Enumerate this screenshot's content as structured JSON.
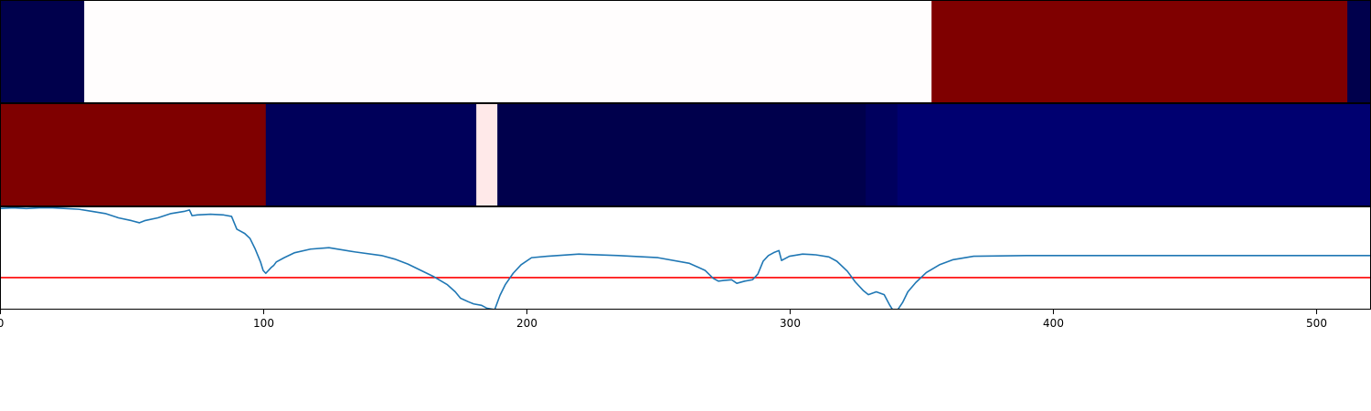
{
  "chart_data": [
    {
      "type": "heatmap",
      "colormap": "seismic",
      "segments": [
        {
          "start": 0,
          "end": 32,
          "color": "#00004c"
        },
        {
          "start": 32,
          "end": 354,
          "color": "#fffdfd"
        },
        {
          "start": 354,
          "end": 512,
          "color": "#7f0000"
        },
        {
          "start": 512,
          "end": 521,
          "color": "#00004c"
        }
      ]
    },
    {
      "type": "heatmap",
      "colormap": "seismic",
      "segments": [
        {
          "start": 0,
          "end": 101,
          "color": "#7f0000"
        },
        {
          "start": 101,
          "end": 181,
          "color": "#00005a"
        },
        {
          "start": 181,
          "end": 189,
          "color": "#ffe9e9"
        },
        {
          "start": 189,
          "end": 329,
          "color": "#00004c"
        },
        {
          "start": 329,
          "end": 341,
          "color": "#00005e"
        },
        {
          "start": 341,
          "end": 521,
          "color": "#000070"
        }
      ]
    },
    {
      "type": "line",
      "xlim": [
        0,
        521
      ],
      "ylim": [
        -0.45,
        1.0
      ],
      "xticks": [
        0,
        100,
        200,
        300,
        400,
        500
      ],
      "series": [
        {
          "color": "#1f77b4",
          "x": [
            0,
            5,
            10,
            15,
            20,
            25,
            30,
            35,
            40,
            45,
            50,
            53,
            55,
            60,
            65,
            70,
            72,
            73,
            75,
            80,
            85,
            88,
            90,
            93,
            95,
            97,
            99,
            100,
            101,
            103,
            104,
            105,
            108,
            112,
            118,
            125,
            135,
            145,
            150,
            155,
            160,
            165,
            170,
            173,
            175,
            178,
            180,
            183,
            185,
            188,
            190,
            192,
            195,
            198,
            202,
            208,
            220,
            235,
            250,
            262,
            268,
            271,
            273,
            275,
            278,
            280,
            283,
            286,
            288,
            290,
            292,
            294,
            296,
            297,
            300,
            305,
            310,
            315,
            318,
            322,
            325,
            328,
            330,
            333,
            336,
            338,
            339,
            340,
            341,
            343,
            345,
            348,
            352,
            357,
            362,
            370,
            390,
            420,
            460,
            500,
            521
          ],
          "y": [
            0.97,
            0.98,
            0.97,
            0.98,
            0.98,
            0.97,
            0.96,
            0.93,
            0.9,
            0.84,
            0.8,
            0.77,
            0.8,
            0.84,
            0.9,
            0.93,
            0.95,
            0.87,
            0.88,
            0.89,
            0.88,
            0.86,
            0.68,
            0.62,
            0.55,
            0.4,
            0.22,
            0.1,
            0.06,
            0.14,
            0.17,
            0.22,
            0.28,
            0.35,
            0.4,
            0.42,
            0.36,
            0.31,
            0.26,
            0.19,
            0.1,
            0.01,
            -0.1,
            -0.2,
            -0.29,
            -0.34,
            -0.37,
            -0.39,
            -0.43,
            -0.45,
            -0.25,
            -0.1,
            0.06,
            0.18,
            0.28,
            0.3,
            0.33,
            0.31,
            0.28,
            0.2,
            0.1,
            -0.01,
            -0.05,
            -0.04,
            -0.03,
            -0.08,
            -0.05,
            -0.03,
            0.05,
            0.23,
            0.31,
            0.35,
            0.38,
            0.24,
            0.3,
            0.33,
            0.32,
            0.29,
            0.23,
            0.09,
            -0.06,
            -0.18,
            -0.24,
            -0.2,
            -0.24,
            -0.38,
            -0.44,
            -0.48,
            -0.46,
            -0.35,
            -0.2,
            -0.07,
            0.07,
            0.18,
            0.25,
            0.3,
            0.31,
            0.31,
            0.31,
            0.31,
            0.31
          ]
        }
      ],
      "hlines": [
        {
          "y": 0,
          "color": "#ff0000"
        }
      ]
    }
  ]
}
